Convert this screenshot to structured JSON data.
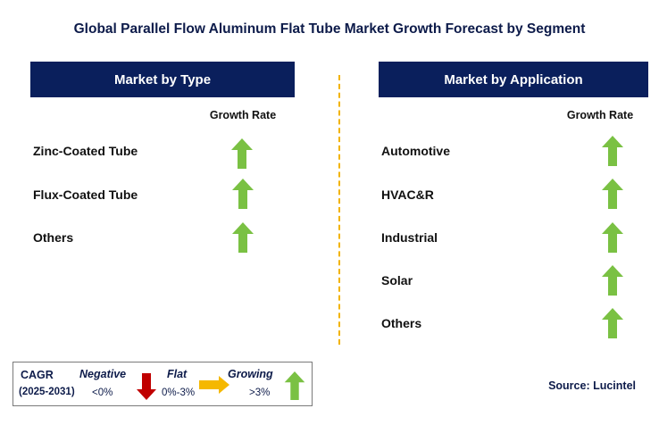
{
  "title": "Global Parallel Flow Aluminum Flat Tube Market Growth Forecast by Segment",
  "left_panel": {
    "header": "Market by Type",
    "growth_label": "Growth Rate",
    "rows": [
      {
        "label": "Zinc-Coated Tube",
        "trend": "growing"
      },
      {
        "label": "Flux-Coated Tube",
        "trend": "growing"
      },
      {
        "label": "Others",
        "trend": "growing"
      }
    ]
  },
  "right_panel": {
    "header": "Market by Application",
    "growth_label": "Growth Rate",
    "rows": [
      {
        "label": "Automotive",
        "trend": "growing"
      },
      {
        "label": "HVAC&R",
        "trend": "growing"
      },
      {
        "label": "Industrial",
        "trend": "growing"
      },
      {
        "label": "Solar",
        "trend": "growing"
      },
      {
        "label": "Others",
        "trend": "growing"
      }
    ]
  },
  "legend": {
    "cagr_label": "CAGR",
    "period": "(2025-2031)",
    "negative": {
      "label": "Negative",
      "range": "<0%",
      "color": "#c00000",
      "icon": "down-arrow-icon"
    },
    "flat": {
      "label": "Flat",
      "range": "0%-3%",
      "color": "#f5b800",
      "icon": "right-arrow-icon"
    },
    "growing": {
      "label": "Growing",
      "range": ">3%",
      "color": "#7ac143",
      "icon": "up-arrow-icon"
    }
  },
  "source": "Source: Lucintel",
  "colors": {
    "header_bg": "#0a1f5c",
    "growing_arrow": "#7ac143",
    "divider": "#f2b300"
  }
}
